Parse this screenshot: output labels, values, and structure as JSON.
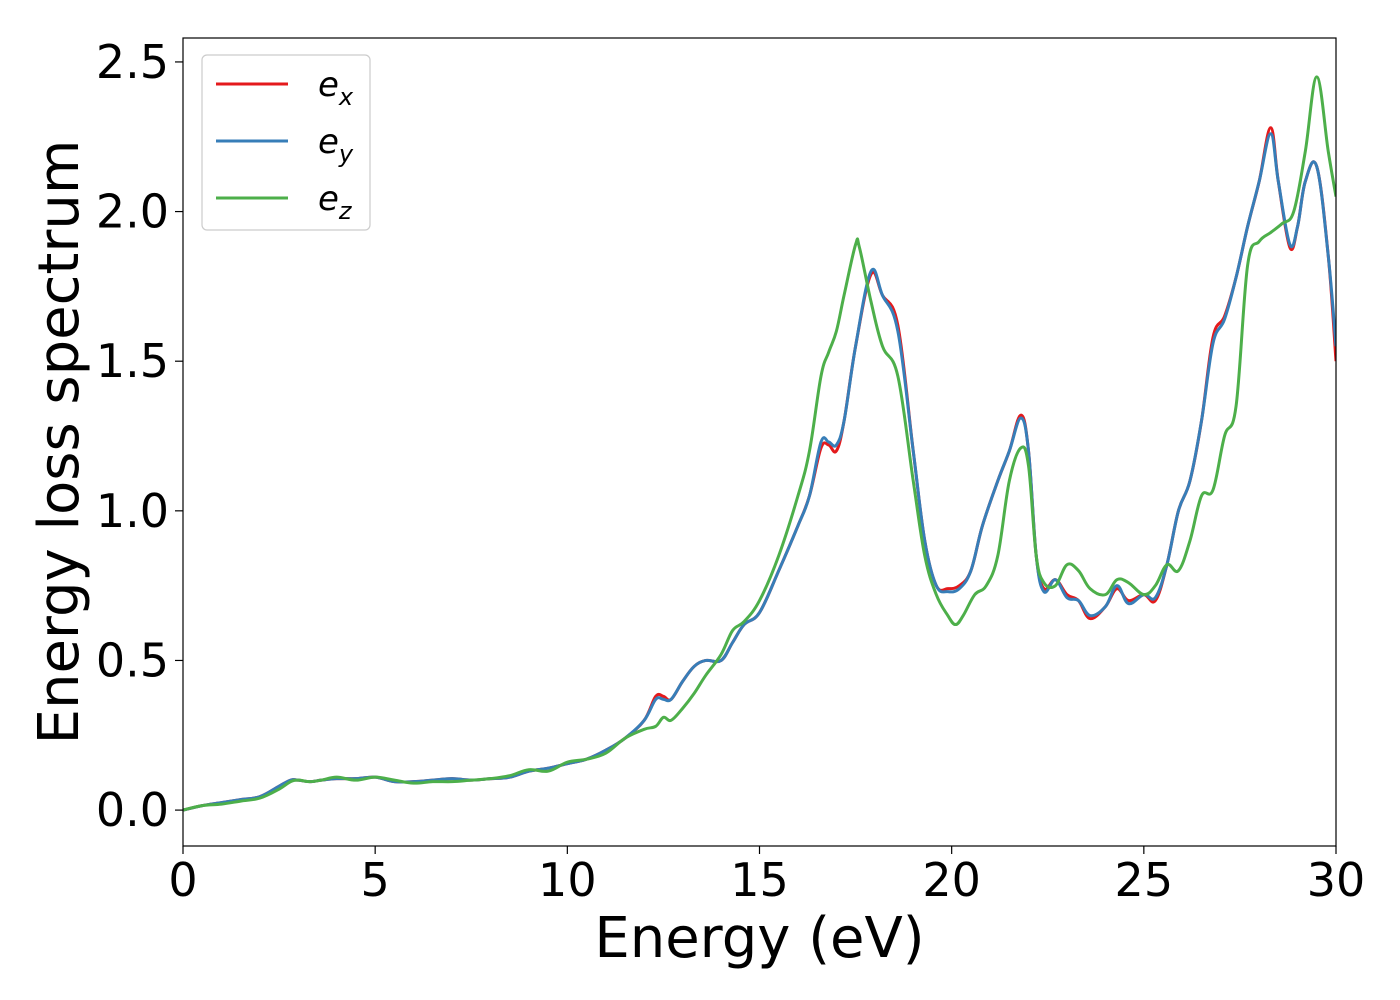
{
  "chart_data": {
    "type": "line",
    "xlabel": "Energy (eV)",
    "ylabel": "Energy loss spectrum",
    "xlim": [
      0,
      30
    ],
    "ylim": [
      -0.12,
      2.58
    ],
    "xticks": [
      0,
      5,
      10,
      15,
      20,
      25,
      30
    ],
    "xtick_labels": [
      "0",
      "5",
      "10",
      "15",
      "20",
      "25",
      "30"
    ],
    "yticks": [
      0.0,
      0.5,
      1.0,
      1.5,
      2.0,
      2.5
    ],
    "ytick_labels": [
      "0.0",
      "0.5",
      "1.0",
      "1.5",
      "2.0",
      "2.5"
    ],
    "grid": false,
    "legend_position": "top-left",
    "series": [
      {
        "name": "e_x",
        "label_main": "e",
        "label_sub": "x",
        "color": "#e41a1c",
        "x": [
          0,
          0.5,
          1,
          1.5,
          2,
          2.5,
          2.8,
          3,
          3.3,
          3.6,
          4,
          4.5,
          5,
          5.5,
          6,
          6.5,
          7,
          7.5,
          8,
          8.5,
          9,
          9.5,
          10,
          10.5,
          11,
          11.5,
          12,
          12.3,
          12.5,
          12.7,
          13,
          13.3,
          13.6,
          14,
          14.3,
          14.6,
          15,
          15.5,
          16,
          16.3,
          16.6,
          16.8,
          17,
          17.2,
          17.5,
          17.9,
          18.2,
          18.6,
          19,
          19.3,
          19.6,
          19.9,
          20.2,
          20.5,
          20.8,
          21.2,
          21.5,
          21.8,
          22,
          22.2,
          22.4,
          22.7,
          23,
          23.3,
          23.6,
          24,
          24.3,
          24.6,
          25,
          25.3,
          25.6,
          25.9,
          26.2,
          26.5,
          26.8,
          27.1,
          27.4,
          27.7,
          28,
          28.3,
          28.5,
          28.8,
          29,
          29.2,
          29.5,
          29.8,
          30
        ],
        "y": [
          0.0,
          0.015,
          0.025,
          0.035,
          0.045,
          0.08,
          0.1,
          0.1,
          0.095,
          0.1,
          0.105,
          0.105,
          0.11,
          0.095,
          0.095,
          0.1,
          0.105,
          0.1,
          0.105,
          0.11,
          0.13,
          0.14,
          0.155,
          0.17,
          0.2,
          0.24,
          0.3,
          0.38,
          0.38,
          0.37,
          0.43,
          0.48,
          0.5,
          0.5,
          0.56,
          0.62,
          0.66,
          0.8,
          0.95,
          1.05,
          1.21,
          1.22,
          1.2,
          1.3,
          1.55,
          1.79,
          1.72,
          1.62,
          1.2,
          0.9,
          0.75,
          0.74,
          0.75,
          0.8,
          0.95,
          1.1,
          1.2,
          1.32,
          1.2,
          0.85,
          0.74,
          0.77,
          0.72,
          0.7,
          0.64,
          0.68,
          0.74,
          0.7,
          0.72,
          0.7,
          0.82,
          1.0,
          1.1,
          1.3,
          1.58,
          1.65,
          1.78,
          1.95,
          2.1,
          2.28,
          2.1,
          1.88,
          1.95,
          2.1,
          2.15,
          1.85,
          1.5
        ]
      },
      {
        "name": "e_y",
        "label_main": "e",
        "label_sub": "y",
        "color": "#377eb8",
        "x": [
          0,
          0.5,
          1,
          1.5,
          2,
          2.5,
          2.8,
          3,
          3.3,
          3.6,
          4,
          4.5,
          5,
          5.5,
          6,
          6.5,
          7,
          7.5,
          8,
          8.5,
          9,
          9.5,
          10,
          10.5,
          11,
          11.5,
          12,
          12.3,
          12.5,
          12.7,
          13,
          13.3,
          13.6,
          14,
          14.3,
          14.6,
          15,
          15.5,
          16,
          16.3,
          16.6,
          16.8,
          17,
          17.2,
          17.5,
          17.9,
          18.2,
          18.6,
          19,
          19.3,
          19.6,
          19.9,
          20.2,
          20.5,
          20.8,
          21.2,
          21.5,
          21.8,
          22,
          22.2,
          22.4,
          22.7,
          23,
          23.3,
          23.6,
          24,
          24.3,
          24.6,
          25,
          25.3,
          25.6,
          25.9,
          26.2,
          26.5,
          26.8,
          27.1,
          27.4,
          27.7,
          28,
          28.3,
          28.5,
          28.8,
          29,
          29.2,
          29.5,
          29.8,
          30
        ],
        "y": [
          0.0,
          0.015,
          0.025,
          0.035,
          0.045,
          0.08,
          0.1,
          0.1,
          0.095,
          0.1,
          0.105,
          0.105,
          0.11,
          0.095,
          0.095,
          0.1,
          0.105,
          0.1,
          0.105,
          0.11,
          0.13,
          0.14,
          0.155,
          0.17,
          0.2,
          0.24,
          0.3,
          0.37,
          0.37,
          0.37,
          0.43,
          0.48,
          0.5,
          0.5,
          0.56,
          0.62,
          0.66,
          0.8,
          0.95,
          1.05,
          1.23,
          1.23,
          1.22,
          1.3,
          1.55,
          1.8,
          1.72,
          1.6,
          1.2,
          0.9,
          0.75,
          0.73,
          0.74,
          0.8,
          0.95,
          1.1,
          1.2,
          1.31,
          1.2,
          0.85,
          0.73,
          0.77,
          0.71,
          0.7,
          0.65,
          0.68,
          0.75,
          0.69,
          0.72,
          0.71,
          0.82,
          1.0,
          1.1,
          1.3,
          1.56,
          1.64,
          1.78,
          1.95,
          2.1,
          2.26,
          2.1,
          1.89,
          1.95,
          2.1,
          2.15,
          1.85,
          1.55
        ]
      },
      {
        "name": "e_z",
        "label_main": "e",
        "label_sub": "z",
        "color": "#4daf4a",
        "x": [
          0,
          0.5,
          1,
          1.5,
          2,
          2.5,
          2.8,
          3,
          3.3,
          3.6,
          4,
          4.5,
          5,
          5.5,
          6,
          6.5,
          7,
          7.5,
          8,
          8.5,
          9,
          9.5,
          10,
          10.5,
          11,
          11.5,
          12,
          12.3,
          12.5,
          12.7,
          13,
          13.3,
          13.6,
          14,
          14.3,
          14.6,
          15,
          15.5,
          16,
          16.3,
          16.6,
          16.8,
          17,
          17.2,
          17.5,
          17.6,
          17.9,
          18.2,
          18.6,
          19,
          19.3,
          19.6,
          19.9,
          20.1,
          20.3,
          20.6,
          20.9,
          21.2,
          21.5,
          21.8,
          22,
          22.2,
          22.4,
          22.7,
          23,
          23.3,
          23.6,
          24,
          24.3,
          24.6,
          25,
          25.3,
          25.6,
          25.9,
          26.2,
          26.5,
          26.8,
          27.1,
          27.4,
          27.7,
          28,
          28.3,
          28.6,
          28.9,
          29.2,
          29.5,
          29.8,
          30
        ],
        "y": [
          0.0,
          0.015,
          0.02,
          0.03,
          0.04,
          0.07,
          0.095,
          0.1,
          0.095,
          0.1,
          0.11,
          0.1,
          0.11,
          0.1,
          0.09,
          0.095,
          0.095,
          0.1,
          0.105,
          0.115,
          0.135,
          0.13,
          0.16,
          0.17,
          0.19,
          0.24,
          0.27,
          0.28,
          0.31,
          0.3,
          0.34,
          0.39,
          0.45,
          0.52,
          0.6,
          0.63,
          0.7,
          0.85,
          1.05,
          1.2,
          1.45,
          1.53,
          1.6,
          1.72,
          1.89,
          1.88,
          1.7,
          1.55,
          1.45,
          1.1,
          0.85,
          0.72,
          0.65,
          0.62,
          0.65,
          0.72,
          0.75,
          0.85,
          1.1,
          1.21,
          1.15,
          0.85,
          0.76,
          0.75,
          0.82,
          0.8,
          0.74,
          0.72,
          0.77,
          0.76,
          0.72,
          0.75,
          0.82,
          0.8,
          0.9,
          1.05,
          1.07,
          1.25,
          1.35,
          1.82,
          1.9,
          1.93,
          1.96,
          2.0,
          2.2,
          2.45,
          2.2,
          2.05
        ]
      }
    ]
  }
}
